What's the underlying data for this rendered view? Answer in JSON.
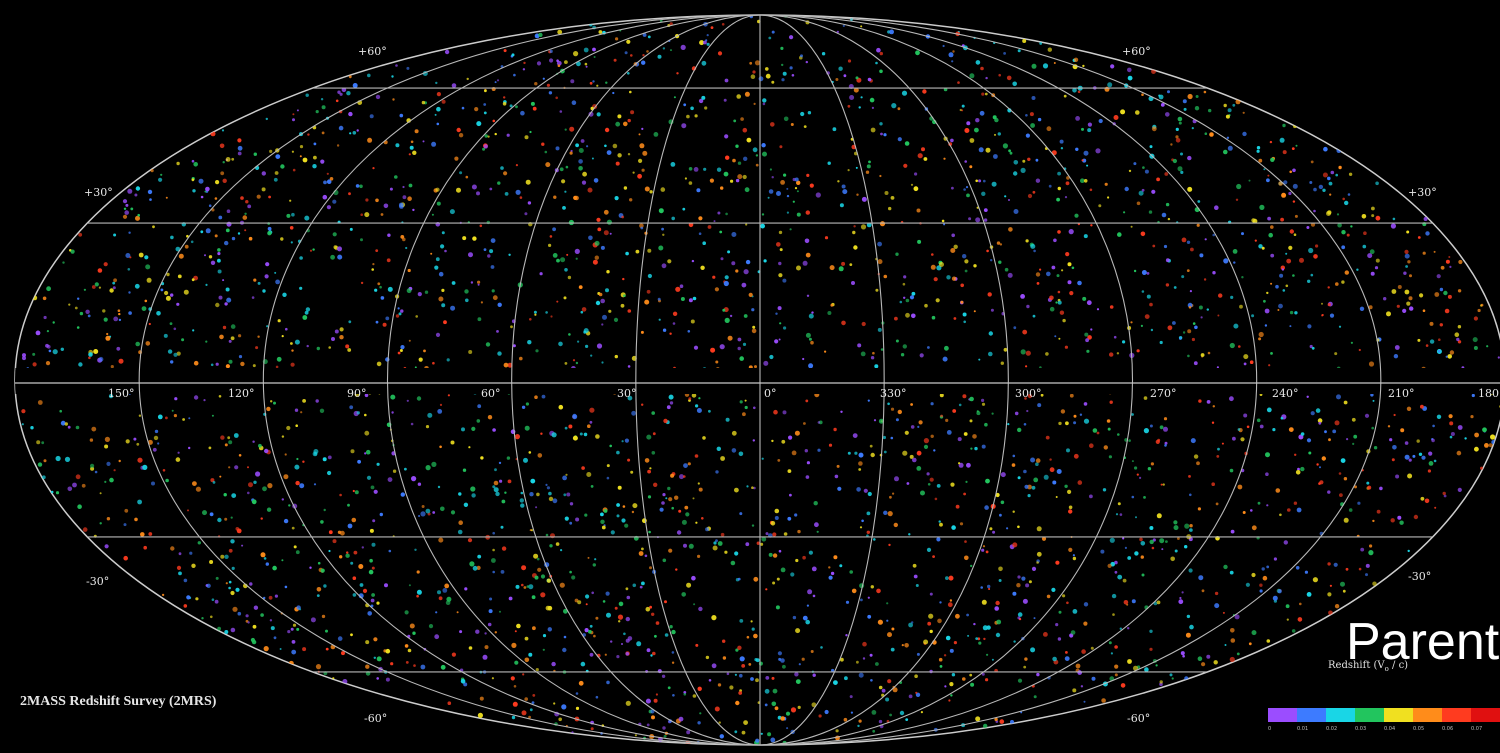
{
  "map": {
    "longitude_labels": [
      "150°",
      "120°",
      "90°",
      "60°",
      "30°",
      "0°",
      "330°",
      "300°",
      "270°",
      "240°",
      "210°",
      "180"
    ],
    "latitude_labels": {
      "north_60": "+60°",
      "north_30": "+30°",
      "south_30": "-30°",
      "south_60": "-60°"
    },
    "survey_title": "2MASS Redshift Survey (2MRS)",
    "overlay_text": "Parent",
    "colors": {
      "background": "#000000",
      "grid": "#bbbbbb",
      "point_palette": [
        "#9b4dff",
        "#3d7bff",
        "#19d6e6",
        "#22c55e",
        "#f0e020",
        "#ff8c1a",
        "#ff3b1f"
      ]
    }
  },
  "legend": {
    "title": "Redshift (V",
    "subscript": "o",
    "title_suffix": " / c)",
    "colors": [
      "#9b4dff",
      "#3d7bff",
      "#19d6e6",
      "#22c55e",
      "#f0e020",
      "#ff8c1a",
      "#ff3b1f",
      "#e01010"
    ],
    "ticks": [
      "0",
      "0.01",
      "0.02",
      "0.03",
      "0.04",
      "0.05",
      "0.06",
      "0.07"
    ]
  }
}
